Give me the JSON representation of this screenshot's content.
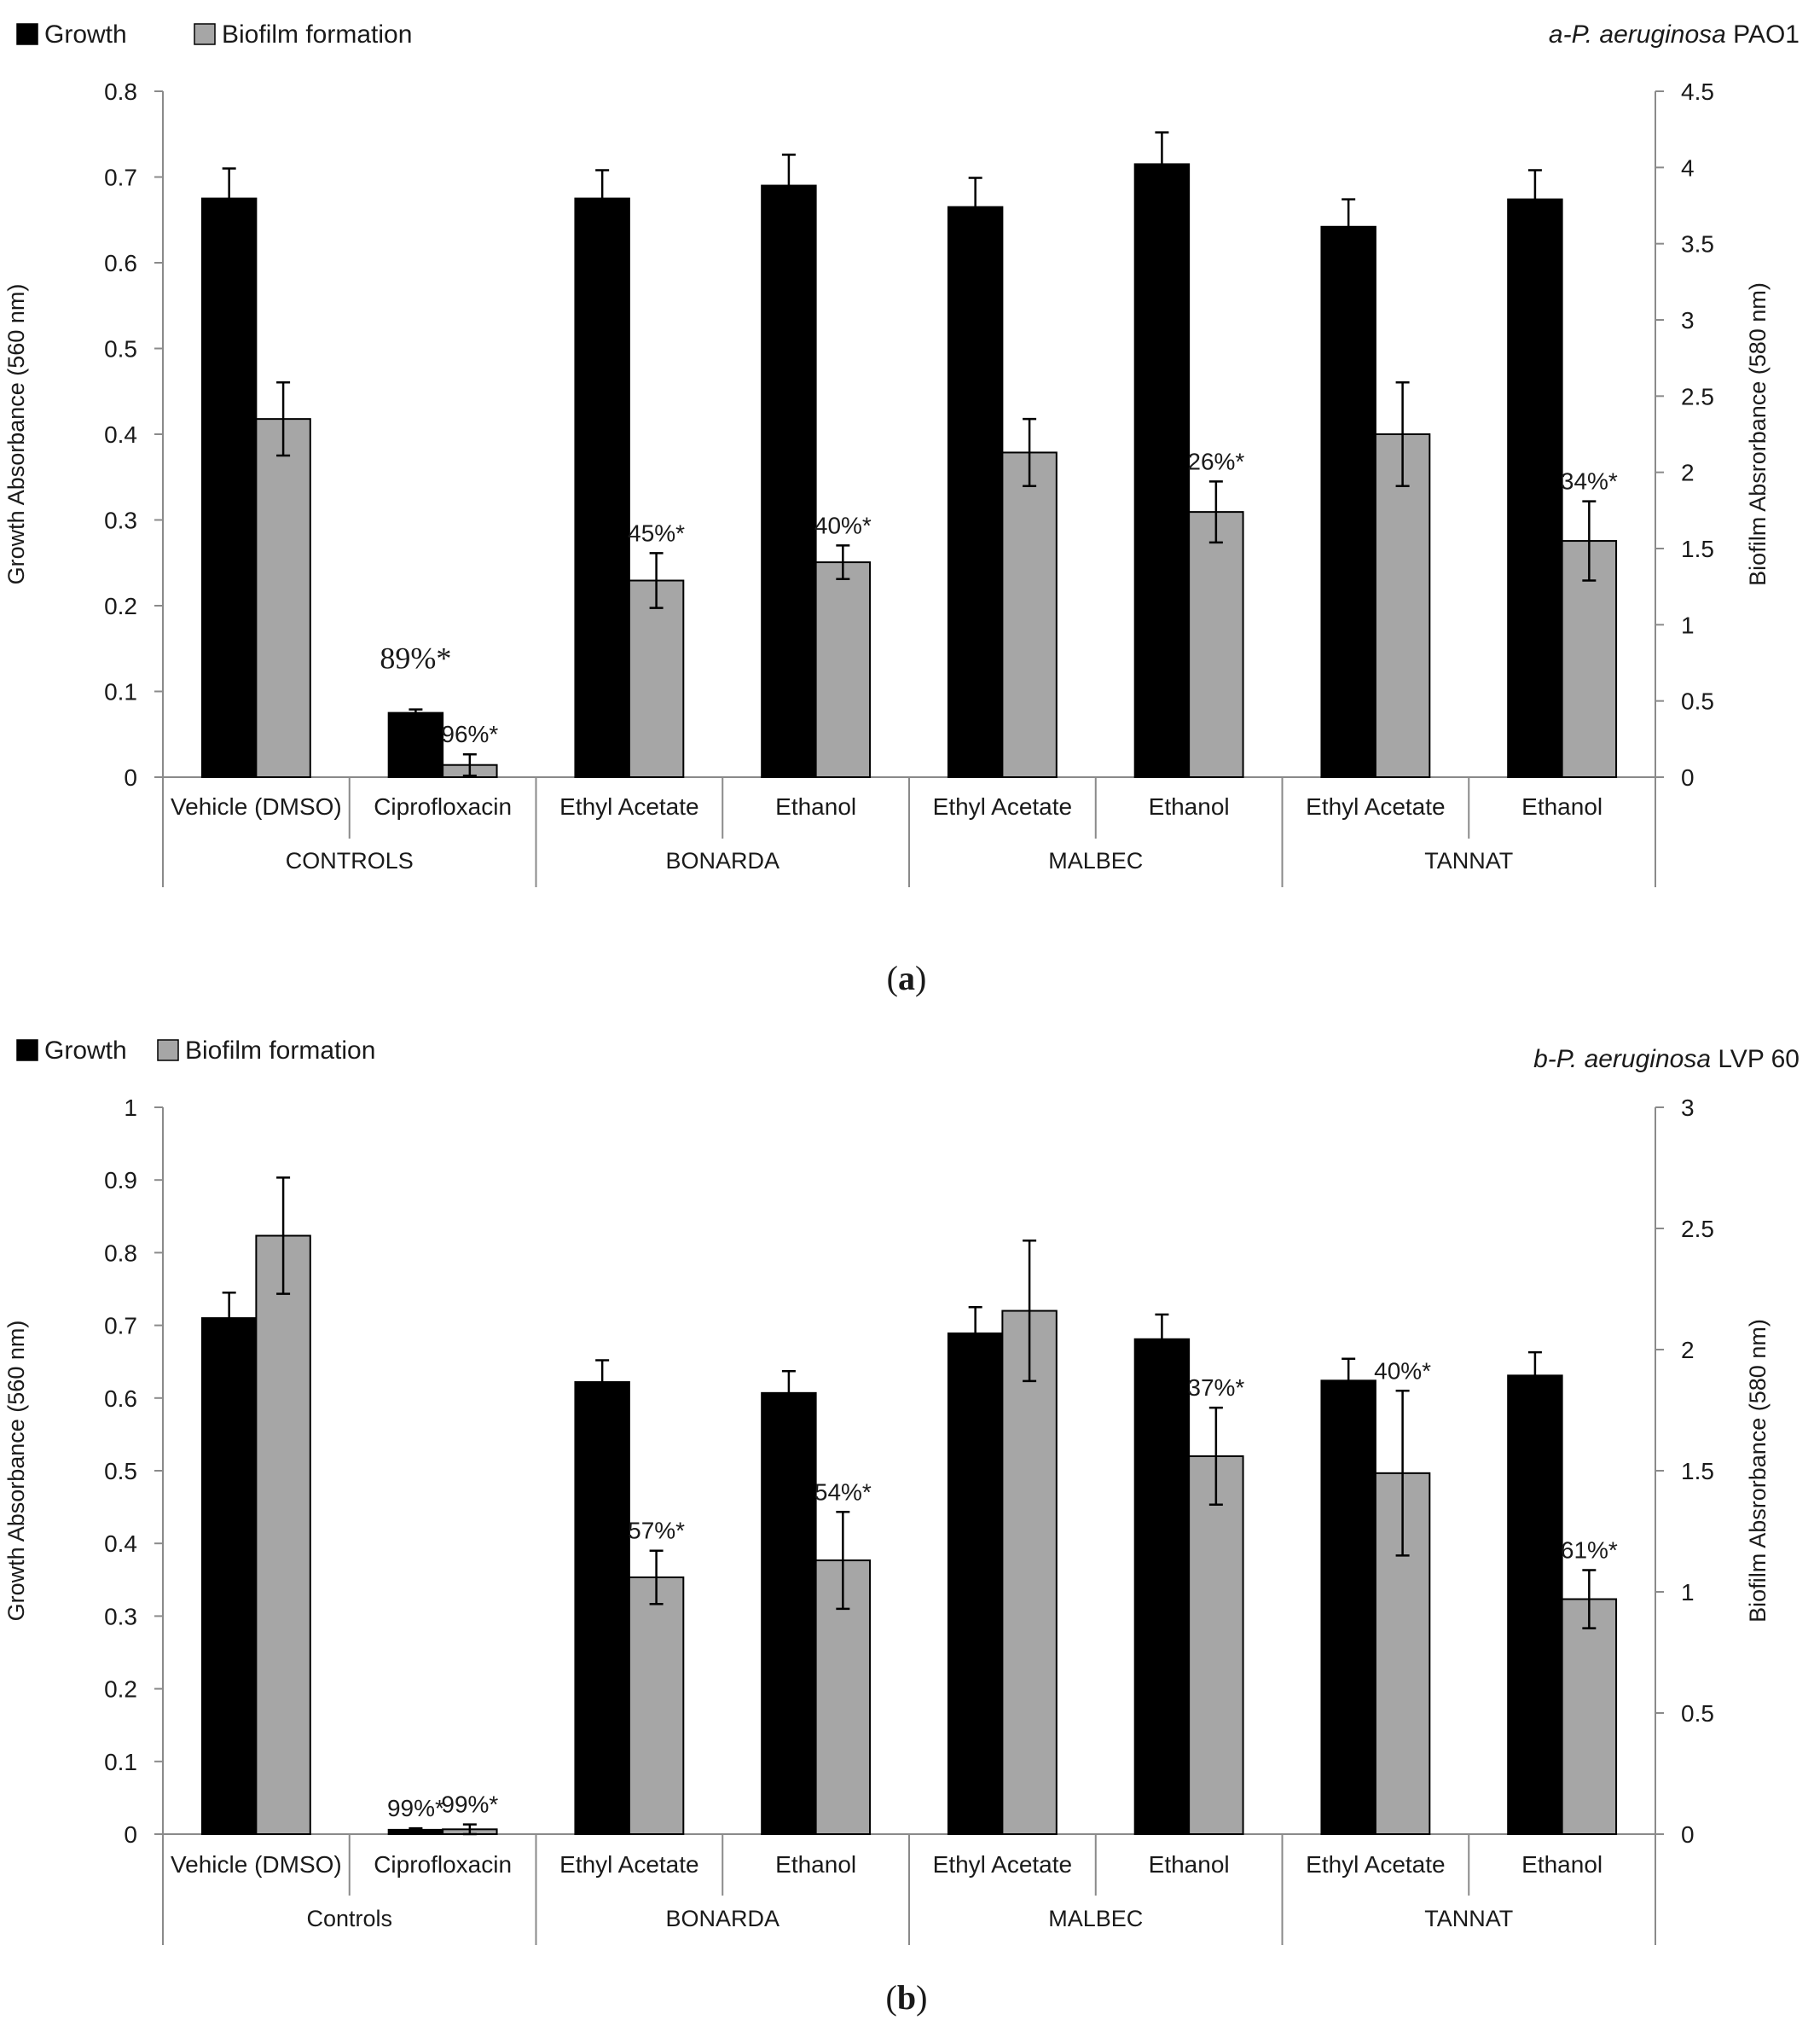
{
  "colors": {
    "growth": "#000000",
    "biofilm": "#a6a6a6",
    "axis": "#8a8a8a"
  },
  "chart_data": [
    {
      "type": "bar",
      "panel_label": "a",
      "title_italic": "a-P. aeruginosa",
      "title_rest": "PAO1",
      "legend": [
        "Growth",
        "Biofilm formation"
      ],
      "ylabel": "Growth Absorbance (560 nm)",
      "ylabel2": "Biofilm Absrorbance (580 nm)",
      "ylim": [
        0,
        0.8
      ],
      "yticks": [
        "0",
        "0.1",
        "0.2",
        "0.3",
        "0.4",
        "0.5",
        "0.6",
        "0.7",
        "0.8"
      ],
      "ylim2": [
        0,
        4.5
      ],
      "yticks2": [
        "0",
        "0.5",
        "1",
        "1.5",
        "2",
        "2.5",
        "3",
        "3.5",
        "4",
        "4.5"
      ],
      "categories": [
        "Vehicle (DMSO)",
        "Ciprofloxacin",
        "Ethyl Acetate",
        "Ethanol",
        "Ethyl Acetate",
        "Ethanol",
        "Ethyl Acetate",
        "Ethanol"
      ],
      "groups": [
        "CONTROLS",
        "BONARDA",
        "MALBEC",
        "TANNAT"
      ],
      "series": [
        {
          "name": "Growth",
          "axis": "left",
          "values": [
            0.675,
            0.075,
            0.675,
            0.69,
            0.665,
            0.715,
            0.642,
            0.674
          ],
          "errors": [
            0.035,
            0.004,
            0.033,
            0.036,
            0.034,
            0.037,
            0.032,
            0.034
          ]
        },
        {
          "name": "Biofilm formation",
          "axis": "right",
          "values": [
            2.35,
            0.08,
            1.29,
            1.41,
            2.13,
            1.74,
            2.25,
            1.55
          ],
          "errors": [
            0.24,
            0.07,
            0.18,
            0.11,
            0.22,
            0.2,
            0.34,
            0.26
          ]
        }
      ],
      "annotations": [
        {
          "text": "89%*",
          "index": 1,
          "series": 0,
          "big": true
        },
        {
          "text": "96%*",
          "index": 1,
          "series": 1
        },
        {
          "text": "45%*",
          "index": 2,
          "series": 1
        },
        {
          "text": "40%*",
          "index": 3,
          "series": 1
        },
        {
          "text": "26%*",
          "index": 5,
          "series": 1
        },
        {
          "text": "34%*",
          "index": 7,
          "series": 1
        }
      ]
    },
    {
      "type": "bar",
      "panel_label": "b",
      "title_italic": "b-P. aeruginosa",
      "title_rest": "LVP 60",
      "legend": [
        "Growth",
        "Biofilm formation"
      ],
      "ylabel": "Growth Absorbance (560 nm)",
      "ylabel2": "Biofilm Absrorbance (580 nm)",
      "ylim": [
        0,
        1
      ],
      "yticks": [
        "0",
        "0.1",
        "0.2",
        "0.3",
        "0.4",
        "0.5",
        "0.6",
        "0.7",
        "0.8",
        "0.9",
        "1"
      ],
      "ylim2": [
        0,
        3
      ],
      "yticks2": [
        "0",
        "0.5",
        "1",
        "1.5",
        "2",
        "2.5",
        "3"
      ],
      "categories": [
        "Vehicle (DMSO)",
        "Ciprofloxacin",
        "Ethyl Acetate",
        "Ethanol",
        "Ethyl Acetate",
        "Ethanol",
        "Ethyl Acetate",
        "Ethanol"
      ],
      "groups": [
        "Controls",
        "BONARDA",
        "MALBEC",
        "TANNAT"
      ],
      "series": [
        {
          "name": "Growth",
          "axis": "left",
          "values": [
            0.71,
            0.006,
            0.622,
            0.607,
            0.689,
            0.681,
            0.624,
            0.631
          ],
          "errors": [
            0.035,
            0.002,
            0.03,
            0.03,
            0.036,
            0.034,
            0.03,
            0.032
          ]
        },
        {
          "name": "Biofilm formation",
          "axis": "right",
          "values": [
            2.47,
            0.02,
            1.06,
            1.13,
            2.16,
            1.56,
            1.49,
            0.97
          ],
          "errors": [
            0.24,
            0.02,
            0.11,
            0.2,
            0.29,
            0.2,
            0.34,
            0.12
          ]
        }
      ],
      "annotations": [
        {
          "text": "99%*",
          "index": 1,
          "series": 0
        },
        {
          "text": "99%*",
          "index": 1,
          "series": 1
        },
        {
          "text": "57%*",
          "index": 2,
          "series": 1
        },
        {
          "text": "54%*",
          "index": 3,
          "series": 1
        },
        {
          "text": "37%*",
          "index": 5,
          "series": 1
        },
        {
          "text": "40%*",
          "index": 6,
          "series": 1
        },
        {
          "text": "61%*",
          "index": 7,
          "series": 1
        }
      ]
    }
  ]
}
